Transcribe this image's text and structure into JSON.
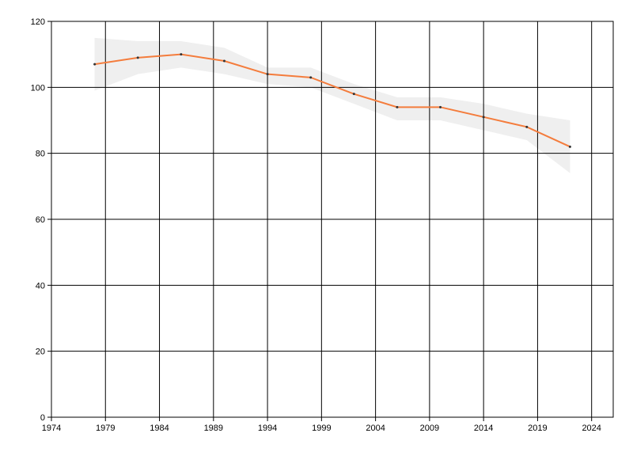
{
  "chart_data": {
    "type": "line",
    "x": [
      1978,
      1982,
      1986,
      1990,
      1994,
      1998,
      2002,
      2006,
      2010,
      2014,
      2018,
      2022
    ],
    "series": [
      {
        "color": "#f47c3c",
        "values": [
          107,
          109,
          110,
          108,
          104,
          103,
          98,
          94,
          94,
          91,
          88,
          82
        ]
      }
    ],
    "band": {
      "color": "#efefef",
      "upper": [
        115,
        114,
        114,
        112,
        106,
        106,
        101,
        97,
        97,
        95,
        92,
        90
      ],
      "lower": [
        99,
        104,
        106,
        104,
        101,
        100,
        95,
        90,
        90,
        87,
        84,
        74
      ]
    },
    "xlim": [
      1974,
      2026
    ],
    "xticks": [
      1974,
      1979,
      1984,
      1989,
      1994,
      1999,
      2004,
      2009,
      2014,
      2019,
      2024
    ],
    "ylim": [
      0,
      120
    ],
    "yticks": [
      0,
      20,
      40,
      60,
      80,
      100,
      120
    ],
    "grid": true
  }
}
